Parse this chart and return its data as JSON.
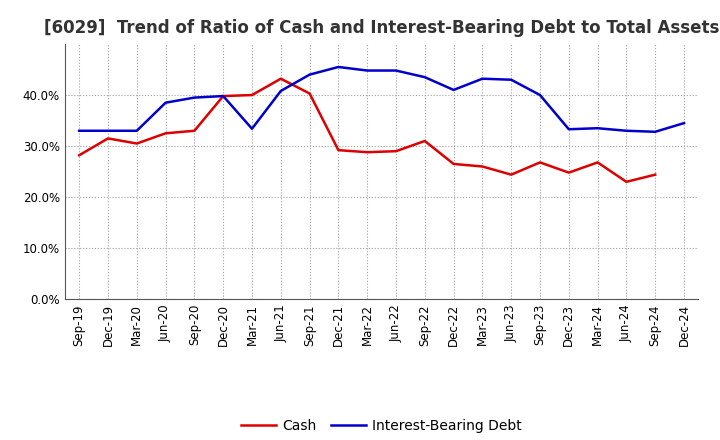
{
  "title": "[6029]  Trend of Ratio of Cash and Interest-Bearing Debt to Total Assets",
  "labels": [
    "Sep-19",
    "Dec-19",
    "Mar-20",
    "Jun-20",
    "Sep-20",
    "Dec-20",
    "Mar-21",
    "Jun-21",
    "Sep-21",
    "Dec-21",
    "Mar-22",
    "Jun-22",
    "Sep-22",
    "Dec-22",
    "Mar-23",
    "Jun-23",
    "Sep-23",
    "Dec-23",
    "Mar-24",
    "Jun-24",
    "Sep-24",
    "Dec-24"
  ],
  "cash": [
    0.282,
    0.315,
    0.305,
    0.325,
    0.33,
    0.398,
    0.4,
    0.432,
    0.403,
    0.292,
    0.288,
    0.29,
    0.31,
    0.265,
    0.26,
    0.244,
    0.268,
    0.248,
    0.268,
    0.23,
    0.244,
    null
  ],
  "ibd": [
    0.33,
    0.33,
    0.33,
    0.385,
    0.395,
    0.398,
    0.334,
    0.408,
    0.44,
    0.455,
    0.448,
    0.448,
    0.435,
    0.41,
    0.432,
    0.43,
    0.4,
    0.333,
    0.335,
    0.33,
    0.328,
    0.345
  ],
  "cash_color": "#dd0000",
  "ibd_color": "#0000cc",
  "background_color": "#ffffff",
  "plot_bg_color": "#ffffff",
  "grid_color": "#999999",
  "ylim": [
    0.0,
    0.5
  ],
  "yticks": [
    0.0,
    0.1,
    0.2,
    0.3,
    0.4
  ],
  "legend_labels": [
    "Cash",
    "Interest-Bearing Debt"
  ],
  "title_fontsize": 12,
  "axis_fontsize": 8.5,
  "legend_fontsize": 10,
  "linewidth": 1.8
}
